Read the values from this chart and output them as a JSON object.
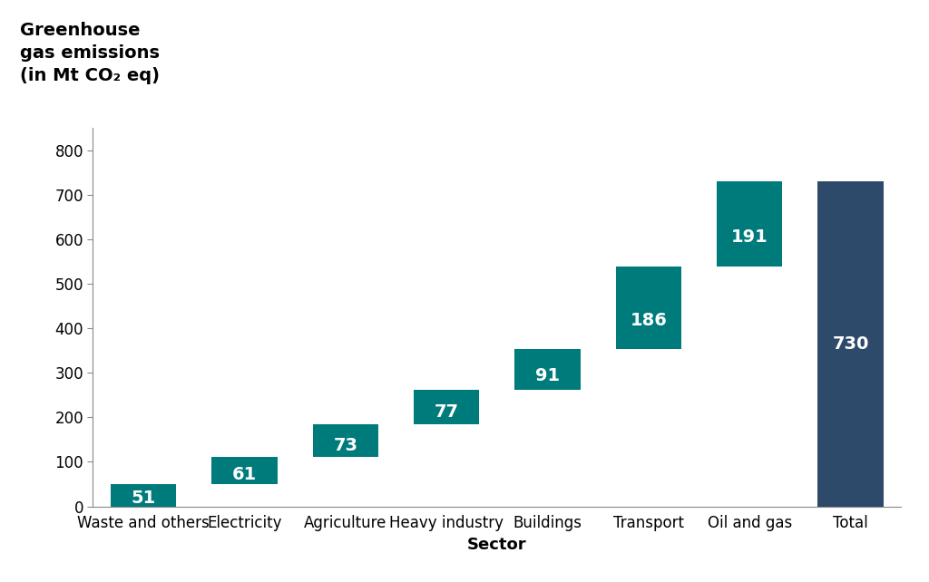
{
  "categories": [
    "Waste and others",
    "Electricity",
    "Agriculture",
    "Heavy industry",
    "Buildings",
    "Transport",
    "Oil and gas",
    "Total"
  ],
  "values": [
    51,
    61,
    73,
    77,
    91,
    186,
    191,
    730
  ],
  "bottoms": [
    0,
    51,
    112,
    185,
    262,
    353,
    539,
    0
  ],
  "teal_color": "#007B7B",
  "navy_color": "#2E4A6B",
  "label_color": "#FFFFFF",
  "total_label_color": "#2E4A6B",
  "title_lines": [
    "Greenhouse",
    "gas emissions",
    "(in Mt CO₂ eq)"
  ],
  "xlabel": "Sector",
  "ylim": [
    0,
    850
  ],
  "yticks": [
    0,
    100,
    200,
    300,
    400,
    500,
    600,
    700,
    800
  ],
  "bar_label_fontsize": 14,
  "axis_label_fontsize": 13,
  "tick_fontsize": 12,
  "title_fontsize": 14,
  "background_color": "#FFFFFF",
  "value_labels": [
    "51",
    "61",
    "73",
    "77",
    "91",
    "186",
    "191",
    "730"
  ]
}
